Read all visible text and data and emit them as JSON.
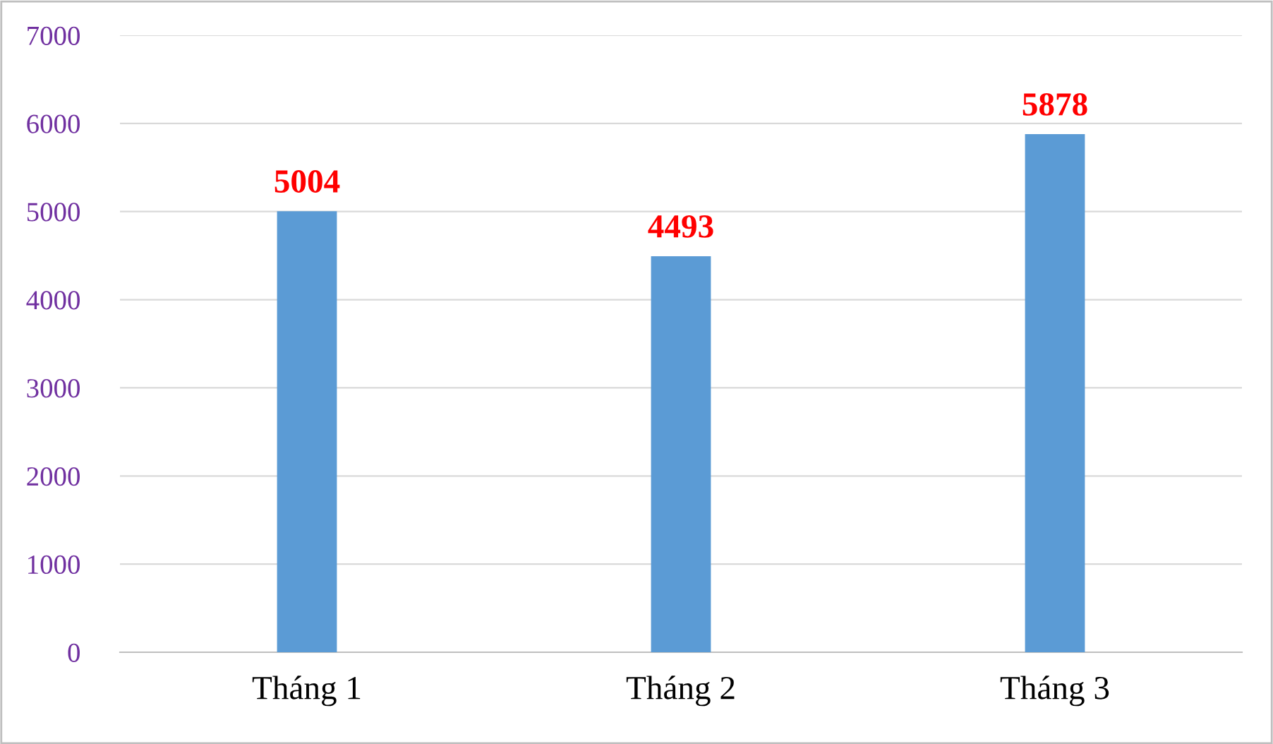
{
  "chart_data": {
    "type": "bar",
    "categories": [
      "Tháng 1",
      "Tháng 2",
      "Tháng 3"
    ],
    "values": [
      5004,
      4493,
      5878
    ],
    "color": "#5b9bd5",
    "ylim": [
      0,
      7000
    ],
    "yticks": [
      0,
      1000,
      2000,
      3000,
      4000,
      5000,
      6000,
      7000
    ],
    "grid": "y",
    "data_labels": true
  }
}
